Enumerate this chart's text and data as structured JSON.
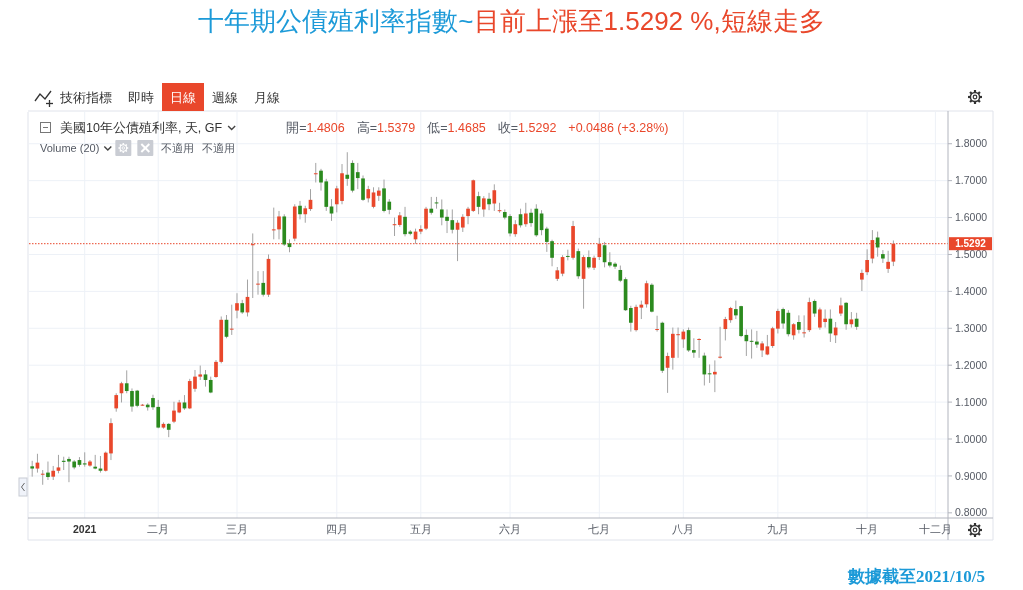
{
  "chart_data": {
    "type": "candlestick",
    "title": "十年期公債殖利率指數~目前上漲至1.5292 %,短線走多",
    "categories": [
      null,
      null,
      null,
      null,
      null,
      null,
      null,
      null,
      null,
      null,
      "2021",
      null,
      null,
      null,
      null,
      null,
      null,
      null,
      null,
      null,
      null,
      null,
      null,
      null,
      "二月",
      null,
      null,
      null,
      null,
      null,
      null,
      null,
      null,
      null,
      null,
      null,
      null,
      null,
      null,
      "三月",
      null,
      null,
      null,
      null,
      null,
      null,
      null,
      null,
      null,
      null,
      null,
      null,
      null,
      null,
      null,
      null,
      null,
      null,
      "四月",
      null,
      null,
      null,
      null,
      null,
      null,
      null,
      null,
      null,
      null,
      null,
      null,
      null,
      null,
      null,
      "五月",
      null,
      null,
      null,
      null,
      null,
      null,
      null,
      null,
      null,
      null,
      null,
      null,
      null,
      null,
      null,
      null,
      "六月",
      null,
      null,
      null,
      null,
      null,
      null,
      null,
      null,
      null,
      null,
      null,
      null,
      null,
      null,
      null,
      null,
      "七月",
      null,
      null,
      null,
      null,
      null,
      null,
      null,
      null,
      null,
      null,
      null,
      null,
      null,
      null,
      null,
      "八月",
      null,
      null,
      null,
      null,
      null,
      null,
      null,
      null,
      null,
      null,
      null,
      null,
      null,
      null,
      null,
      null,
      null,
      "九月",
      null,
      null,
      null,
      null,
      null,
      null,
      null,
      null,
      null,
      null,
      null,
      null,
      null,
      null,
      null,
      null,
      "十月",
      null,
      null,
      null,
      null,
      null,
      null,
      null,
      null,
      null,
      null,
      null,
      null,
      "十二月",
      null
    ],
    "ohlc": [
      [
        0.926,
        0.941,
        0.898,
        0.92
      ],
      [
        0.92,
        0.96,
        0.909,
        0.936
      ],
      [
        0.904,
        0.916,
        0.876,
        0.906
      ],
      [
        0.909,
        0.939,
        0.889,
        0.897
      ],
      [
        0.898,
        0.927,
        0.889,
        0.914
      ],
      [
        0.914,
        0.957,
        0.907,
        0.923
      ],
      [
        0.941,
        0.952,
        0.916,
        0.938
      ],
      [
        0.946,
        0.952,
        0.883,
        0.939
      ],
      [
        0.939,
        0.943,
        0.918,
        0.923
      ],
      [
        0.943,
        0.951,
        0.925,
        0.93
      ],
      [
        0.934,
        0.964,
        0.925,
        0.931
      ],
      [
        0.928,
        0.943,
        0.925,
        0.939
      ],
      [
        0.925,
        0.957,
        0.918,
        0.92
      ],
      [
        0.92,
        0.954,
        0.909,
        0.914
      ],
      [
        0.914,
        0.966,
        0.912,
        0.963
      ],
      [
        0.961,
        1.056,
        0.943,
        1.043
      ],
      [
        1.083,
        1.124,
        1.074,
        1.119
      ],
      [
        1.124,
        1.155,
        1.099,
        1.151
      ],
      [
        1.151,
        1.186,
        1.124,
        1.13
      ],
      [
        1.13,
        1.137,
        1.074,
        1.088
      ],
      [
        1.131,
        1.133,
        1.086,
        1.09
      ],
      [
        1.091,
        1.095,
        1.09,
        1.093
      ],
      [
        1.093,
        1.097,
        1.077,
        1.086
      ],
      [
        1.111,
        1.12,
        1.079,
        1.086
      ],
      [
        1.087,
        1.106,
        1.029,
        1.031
      ],
      [
        1.031,
        1.045,
        1.028,
        1.041
      ],
      [
        1.041,
        1.043,
        1.005,
        1.025
      ],
      [
        1.047,
        1.101,
        1.043,
        1.077
      ],
      [
        1.072,
        1.106,
        1.07,
        1.099
      ],
      [
        1.099,
        1.119,
        1.079,
        1.083
      ],
      [
        1.083,
        1.163,
        1.081,
        1.157
      ],
      [
        1.136,
        1.187,
        1.128,
        1.169
      ],
      [
        1.169,
        1.199,
        1.16,
        1.175
      ],
      [
        1.175,
        1.187,
        1.142,
        1.16
      ],
      [
        1.16,
        1.169,
        1.124,
        1.126
      ],
      [
        1.168,
        1.214,
        1.166,
        1.209
      ],
      [
        1.209,
        1.332,
        1.205,
        1.323
      ],
      [
        1.323,
        1.336,
        1.273,
        1.277
      ],
      [
        1.297,
        1.364,
        1.282,
        1.299
      ],
      [
        1.348,
        1.395,
        1.327,
        1.368
      ],
      [
        1.368,
        1.377,
        1.339,
        1.343
      ],
      [
        1.343,
        1.432,
        1.332,
        1.385
      ],
      [
        1.525,
        1.557,
        1.382,
        1.528
      ],
      [
        1.419,
        1.455,
        1.391,
        1.421
      ],
      [
        1.423,
        1.455,
        1.386,
        1.391
      ],
      [
        1.391,
        1.5,
        1.385,
        1.488
      ],
      [
        1.566,
        1.627,
        1.541,
        1.568
      ],
      [
        1.568,
        1.618,
        1.541,
        1.603
      ],
      [
        1.603,
        1.609,
        1.523,
        1.527
      ],
      [
        1.53,
        1.541,
        1.506,
        1.52
      ],
      [
        1.543,
        1.636,
        1.536,
        1.63
      ],
      [
        1.632,
        1.645,
        1.595,
        1.609
      ],
      [
        1.609,
        1.632,
        1.586,
        1.625
      ],
      [
        1.623,
        1.677,
        1.618,
        1.648
      ],
      [
        1.718,
        1.748,
        1.695,
        1.72
      ],
      [
        1.727,
        1.732,
        1.673,
        1.695
      ],
      [
        1.698,
        1.705,
        1.618,
        1.629
      ],
      [
        1.63,
        1.65,
        1.591,
        1.611
      ],
      [
        1.636,
        1.686,
        1.614,
        1.679
      ],
      [
        1.645,
        1.745,
        1.636,
        1.72
      ],
      [
        1.716,
        1.777,
        1.686,
        1.705
      ],
      [
        1.748,
        1.755,
        1.668,
        1.673
      ],
      [
        1.723,
        1.748,
        1.677,
        1.707
      ],
      [
        1.706,
        1.714,
        1.645,
        1.648
      ],
      [
        1.652,
        1.686,
        1.641,
        1.677
      ],
      [
        1.629,
        1.682,
        1.625,
        1.668
      ],
      [
        1.659,
        1.682,
        1.645,
        1.673
      ],
      [
        1.679,
        1.703,
        1.614,
        1.618
      ],
      [
        1.643,
        1.65,
        1.609,
        1.621
      ],
      [
        1.58,
        1.6,
        1.55,
        1.582
      ],
      [
        1.58,
        1.615,
        1.575,
        1.606
      ],
      [
        1.602,
        1.629,
        1.549,
        1.555
      ],
      [
        1.562,
        1.566,
        1.552,
        1.556
      ],
      [
        1.541,
        1.57,
        1.529,
        1.562
      ],
      [
        1.562,
        1.579,
        1.555,
        1.569
      ],
      [
        1.57,
        1.629,
        1.566,
        1.624
      ],
      [
        1.624,
        1.656,
        1.608,
        1.613
      ],
      [
        1.641,
        1.656,
        1.624,
        1.639
      ],
      [
        1.622,
        1.649,
        1.579,
        1.6
      ],
      [
        1.602,
        1.622,
        1.558,
        1.591
      ],
      [
        1.593,
        1.622,
        1.557,
        1.567
      ],
      [
        1.567,
        1.593,
        1.482,
        1.586
      ],
      [
        1.573,
        1.609,
        1.561,
        1.602
      ],
      [
        1.604,
        1.629,
        1.582,
        1.624
      ],
      [
        1.618,
        1.703,
        1.615,
        1.701
      ],
      [
        1.658,
        1.67,
        1.609,
        1.629
      ],
      [
        1.622,
        1.658,
        1.602,
        1.652
      ],
      [
        1.651,
        1.667,
        1.62,
        1.636
      ],
      [
        1.638,
        1.69,
        1.618,
        1.674
      ],
      [
        1.619,
        1.64,
        1.613,
        1.62
      ],
      [
        1.615,
        1.622,
        1.595,
        1.6
      ],
      [
        1.604,
        1.609,
        1.549,
        1.557
      ],
      [
        1.555,
        1.593,
        1.548,
        1.582
      ],
      [
        1.609,
        1.624,
        1.573,
        1.579
      ],
      [
        1.582,
        1.64,
        1.575,
        1.611
      ],
      [
        1.613,
        1.624,
        1.575,
        1.585
      ],
      [
        1.624,
        1.636,
        1.548,
        1.552
      ],
      [
        1.611,
        1.62,
        1.552,
        1.566
      ],
      [
        1.57,
        1.575,
        1.507,
        1.534
      ],
      [
        1.536,
        1.54,
        1.468,
        1.491
      ],
      [
        1.434,
        1.466,
        1.428,
        1.457
      ],
      [
        1.448,
        1.498,
        1.441,
        1.493
      ],
      [
        1.496,
        1.513,
        1.484,
        1.494
      ],
      [
        1.491,
        1.591,
        1.486,
        1.577
      ],
      [
        1.509,
        1.516,
        1.434,
        1.441
      ],
      [
        1.434,
        1.498,
        1.353,
        1.493
      ],
      [
        1.493,
        1.511,
        1.461,
        1.465
      ],
      [
        1.464,
        1.497,
        1.458,
        1.491
      ],
      [
        1.493,
        1.545,
        1.485,
        1.529
      ],
      [
        1.525,
        1.534,
        1.465,
        1.479
      ],
      [
        1.479,
        1.506,
        1.465,
        1.47
      ],
      [
        1.475,
        1.479,
        1.461,
        1.467
      ],
      [
        1.458,
        1.47,
        1.425,
        1.429
      ],
      [
        1.433,
        1.438,
        1.347,
        1.349
      ],
      [
        1.355,
        1.361,
        1.291,
        1.315
      ],
      [
        1.295,
        1.364,
        1.291,
        1.358
      ],
      [
        1.356,
        1.375,
        1.325,
        1.364
      ],
      [
        1.365,
        1.429,
        1.356,
        1.422
      ],
      [
        1.418,
        1.422,
        1.343,
        1.345
      ],
      [
        1.297,
        1.334,
        1.291,
        1.298
      ],
      [
        1.315,
        1.318,
        1.179,
        1.185
      ],
      [
        1.193,
        1.234,
        1.125,
        1.225
      ],
      [
        1.22,
        1.302,
        1.188,
        1.285
      ],
      [
        1.283,
        1.302,
        1.22,
        1.284
      ],
      [
        1.27,
        1.297,
        1.247,
        1.291
      ],
      [
        1.295,
        1.302,
        1.236,
        1.24
      ],
      [
        1.241,
        1.273,
        1.22,
        1.234
      ],
      [
        1.27,
        1.273,
        1.22,
        1.271
      ],
      [
        1.226,
        1.234,
        1.145,
        1.175
      ],
      [
        1.178,
        1.202,
        1.152,
        1.176
      ],
      [
        1.175,
        1.213,
        1.127,
        1.182
      ],
      [
        1.222,
        1.304,
        1.218,
        1.223
      ],
      [
        1.298,
        1.331,
        1.267,
        1.325
      ],
      [
        1.322,
        1.358,
        1.315,
        1.355
      ],
      [
        1.352,
        1.375,
        1.325,
        1.335
      ],
      [
        1.36,
        1.361,
        1.276,
        1.279
      ],
      [
        1.282,
        1.297,
        1.225,
        1.265
      ],
      [
        1.266,
        1.297,
        1.218,
        1.265
      ],
      [
        1.264,
        1.293,
        1.247,
        1.256
      ],
      [
        1.24,
        1.265,
        1.222,
        1.259
      ],
      [
        1.229,
        1.282,
        1.227,
        1.251
      ],
      [
        1.252,
        1.304,
        1.247,
        1.3
      ],
      [
        1.299,
        1.353,
        1.286,
        1.347
      ],
      [
        1.352,
        1.356,
        1.299,
        1.313
      ],
      [
        1.342,
        1.349,
        1.278,
        1.284
      ],
      [
        1.281,
        1.314,
        1.269,
        1.311
      ],
      [
        1.317,
        1.335,
        1.286,
        1.296
      ],
      [
        1.288,
        1.335,
        1.275,
        1.289
      ],
      [
        1.295,
        1.383,
        1.29,
        1.371
      ],
      [
        1.374,
        1.378,
        1.331,
        1.34
      ],
      [
        1.302,
        1.356,
        1.296,
        1.351
      ],
      [
        1.317,
        1.351,
        1.302,
        1.326
      ],
      [
        1.326,
        1.351,
        1.263,
        1.286
      ],
      [
        1.281,
        1.317,
        1.26,
        1.302
      ],
      [
        1.34,
        1.383,
        1.333,
        1.362
      ],
      [
        1.369,
        1.371,
        1.296,
        1.311
      ],
      [
        1.311,
        1.344,
        1.302,
        1.324
      ],
      [
        1.326,
        1.342,
        1.296,
        1.304
      ],
      [
        1.432,
        1.459,
        1.401,
        1.45
      ],
      [
        1.452,
        1.514,
        1.444,
        1.485
      ],
      [
        1.489,
        1.566,
        1.476,
        1.539
      ],
      [
        1.546,
        1.562,
        1.494,
        1.519
      ],
      [
        1.501,
        1.512,
        1.477,
        1.489
      ],
      [
        1.461,
        1.51,
        1.45,
        1.48
      ],
      [
        1.4806,
        1.5379,
        1.4685,
        1.5292
      ],
      null,
      null,
      null,
      null,
      null,
      null,
      null,
      null,
      null
    ],
    "colors": [
      "#2b8a1e",
      "#e9472b",
      "#e9472b",
      "#2b8a1e",
      "#e9472b",
      "#e9472b",
      "#2b8a1e",
      "#2b8a1e",
      "#2b8a1e",
      "#2b8a1e",
      "#2b8a1e",
      "#e9472b",
      "#2b8a1e",
      "#2b8a1e",
      "#e9472b",
      "#e9472b",
      "#e9472b",
      "#e9472b",
      "#2b8a1e",
      "#2b8a1e",
      "#2b8a1e",
      "#e9472b",
      "#2b8a1e",
      "#2b8a1e",
      "#2b8a1e",
      "#e9472b",
      "#2b8a1e",
      "#e9472b",
      "#e9472b",
      "#2b8a1e",
      "#e9472b",
      "#e9472b",
      "#e9472b",
      "#2b8a1e",
      "#2b8a1e",
      "#e9472b",
      "#e9472b",
      "#2b8a1e",
      "#e9472b",
      "#e9472b",
      "#2b8a1e",
      "#e9472b",
      "#e9472b",
      "#e9472b",
      "#2b8a1e",
      "#e9472b",
      "#e9472b",
      "#e9472b",
      "#2b8a1e",
      "#2b8a1e",
      "#e9472b",
      "#2b8a1e",
      "#e9472b",
      "#e9472b",
      "#e9472b",
      "#2b8a1e",
      "#2b8a1e",
      "#2b8a1e",
      "#e9472b",
      "#e9472b",
      "#2b8a1e",
      "#2b8a1e",
      "#2b8a1e",
      "#2b8a1e",
      "#e9472b",
      "#e9472b",
      "#e9472b",
      "#2b8a1e",
      "#2b8a1e",
      "#e9472b",
      "#e9472b",
      "#2b8a1e",
      "#2b8a1e",
      "#e9472b",
      "#e9472b",
      "#e9472b",
      "#2b8a1e",
      "#2b8a1e",
      "#2b8a1e",
      "#2b8a1e",
      "#2b8a1e",
      "#e9472b",
      "#e9472b",
      "#e9472b",
      "#e9472b",
      "#2b8a1e",
      "#e9472b",
      "#2b8a1e",
      "#e9472b",
      "#e9472b",
      "#2b8a1e",
      "#2b8a1e",
      "#e9472b",
      "#2b8a1e",
      "#e9472b",
      "#2b8a1e",
      "#2b8a1e",
      "#2b8a1e",
      "#2b8a1e",
      "#2b8a1e",
      "#e9472b",
      "#e9472b",
      "#2b8a1e",
      "#e9472b",
      "#2b8a1e",
      "#e9472b",
      "#2b8a1e",
      "#e9472b",
      "#e9472b",
      "#2b8a1e",
      "#2b8a1e",
      "#2b8a1e",
      "#2b8a1e",
      "#2b8a1e",
      "#2b8a1e",
      "#e9472b",
      "#e9472b",
      "#e9472b",
      "#2b8a1e",
      "#e9472b",
      "#2b8a1e",
      "#e9472b",
      "#e9472b",
      "#e9472b",
      "#e9472b",
      "#2b8a1e",
      "#2b8a1e",
      "#e9472b",
      "#2b8a1e",
      "#2b8a1e",
      "#e9472b",
      "#e9472b",
      "#e9472b",
      "#e9472b",
      "#2b8a1e",
      "#2b8a1e",
      "#2b8a1e",
      "#2b8a1e",
      "#2b8a1e",
      "#e9472b",
      "#e9472b",
      "#e9472b",
      "#e9472b",
      "#2b8a1e",
      "#2b8a1e",
      "#e9472b",
      "#2b8a1e",
      "#e9472b",
      "#e9472b",
      "#2b8a1e",
      "#e9472b",
      "#e9472b",
      "#2b8a1e",
      "#e9472b",
      "#e9472b",
      "#2b8a1e",
      "#e9472b",
      "#2b8a1e",
      "#e9472b",
      "#e9472b",
      "#e9472b",
      "#2b8a1e",
      "#2b8a1e",
      "#e9472b",
      "#e9472b",
      null,
      null,
      null,
      null,
      null,
      null,
      null,
      null,
      null
    ],
    "ylim": [
      0.786,
      1.886
    ],
    "yticks": [
      {
        "value": 0.8,
        "label": "0.8000"
      },
      {
        "value": 0.9,
        "label": "0.9000"
      },
      {
        "value": 1.0,
        "label": "1.0000"
      },
      {
        "value": 1.1,
        "label": "1.1000"
      },
      {
        "value": 1.2,
        "label": "1.2000"
      },
      {
        "value": 1.3,
        "label": "1.3000"
      },
      {
        "value": 1.4,
        "label": "1.4000"
      },
      {
        "value": 1.5,
        "label": "1.5000"
      },
      {
        "value": 1.6,
        "label": "1.6000"
      },
      {
        "value": 1.7,
        "label": "1.7000"
      },
      {
        "value": 1.8,
        "label": "1.8000"
      }
    ],
    "grid": true,
    "ref_lines": [
      {
        "axis": "y",
        "value": 1.5292,
        "label": "1.5292",
        "color": "#e9472b",
        "line_style": "dotted"
      }
    ],
    "annotations": [
      "數據截至2021/10/5",
      "技術指標",
      "即時",
      "日線",
      "週線",
      "月線",
      "美國10年公債殖利率, 天, GF",
      "開=1.4806",
      "高=1.5379",
      "低=1.4685",
      "收=1.5292",
      "+0.0486 (+3.28%)",
      "Volume (20)",
      "不適用",
      "不適用"
    ]
  }
}
